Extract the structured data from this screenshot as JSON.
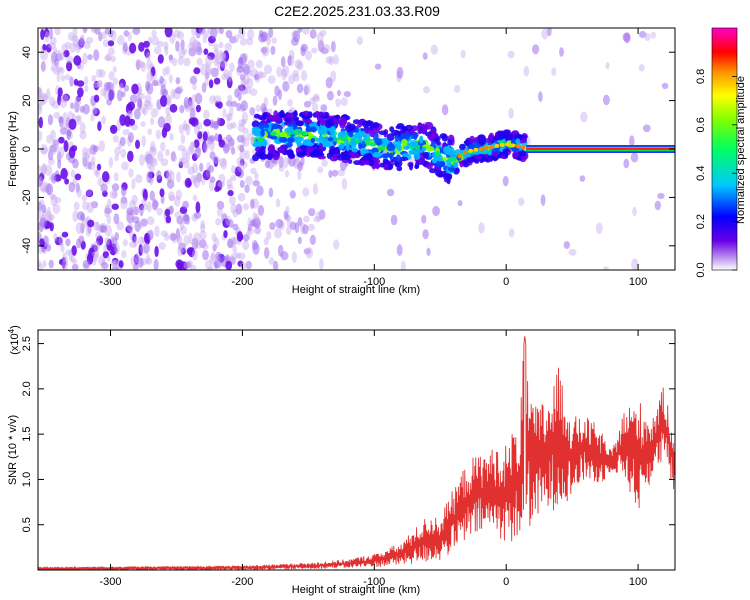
{
  "figure_title": "C2E2.2025.231.03.33.R09",
  "chart_data": [
    {
      "type": "heatmap",
      "xlabel": "Height of straight line (km)",
      "ylabel": "Frequency (Hz)",
      "xlim": [
        -355,
        128
      ],
      "ylim": [
        -50,
        50
      ],
      "x_ticks": [
        -300,
        -200,
        -100,
        0,
        100
      ],
      "x_tick_labels": [
        "-300",
        "-200",
        "-100",
        "0",
        "100"
      ],
      "y_ticks": [
        -40,
        -20,
        0,
        20,
        40
      ],
      "y_tick_labels": [
        "-40",
        "-20",
        "0",
        "20",
        "40"
      ],
      "colorbar": {
        "label": "Normalized spectral amplitude",
        "range": [
          0,
          1
        ],
        "ticks": [
          0.0,
          0.2,
          0.4,
          0.6,
          0.8
        ],
        "tick_labels": [
          "0.0",
          "0.2",
          "0.4",
          "0.6",
          "0.8"
        ],
        "colormap": [
          "#ffffff",
          "#5b00e0",
          "#0000ff",
          "#00c8ff",
          "#00ff00",
          "#ffff00",
          "#ff8000",
          "#ff0000",
          "#ff00ff"
        ]
      },
      "ridge": {
        "x": [
          -190,
          -170,
          -150,
          -130,
          -110,
          -90,
          -75,
          -60,
          -50,
          -40,
          -30,
          -20,
          -10,
          0,
          10,
          20,
          60,
          100,
          128
        ],
        "y": [
          5,
          6,
          6,
          5,
          3,
          0,
          1,
          2,
          -3,
          -5,
          -1,
          0,
          1,
          2,
          1,
          0,
          0,
          0,
          0
        ]
      },
      "grid": false
    },
    {
      "type": "line",
      "xlabel": "Height of straight line (km)",
      "ylabel": "SNR (10 * v/v)",
      "y_multiplier": "(x10",
      "y_multiplier_exp": "4",
      "y_multiplier_close": ")",
      "xlim": [
        -355,
        128
      ],
      "ylim": [
        0,
        2.65
      ],
      "x_ticks": [
        -300,
        -200,
        -100,
        0,
        100
      ],
      "x_tick_labels": [
        "-300",
        "-200",
        "-100",
        "0",
        "100"
      ],
      "y_ticks": [
        0.5,
        1.0,
        1.5,
        2.0,
        2.5
      ],
      "y_tick_labels": [
        "0.5",
        "1.0",
        "1.5",
        "2.0",
        "2.5"
      ],
      "color": "#e03030",
      "envelope": {
        "x": [
          -355,
          -200,
          -150,
          -120,
          -100,
          -80,
          -60,
          -50,
          -40,
          -30,
          -20,
          -10,
          0,
          10,
          14,
          20,
          30,
          40,
          50,
          60,
          70,
          80,
          90,
          100,
          110,
          120,
          128
        ],
        "upper": [
          0.03,
          0.05,
          0.08,
          0.12,
          0.18,
          0.3,
          0.6,
          0.6,
          0.9,
          1.2,
          1.3,
          1.35,
          1.4,
          1.7,
          2.6,
          1.8,
          1.9,
          2.25,
          1.7,
          1.7,
          1.6,
          1.3,
          1.8,
          1.9,
          1.7,
          2.05,
          1.5
        ],
        "lower": [
          0.0,
          0.0,
          0.01,
          0.02,
          0.03,
          0.05,
          0.08,
          0.1,
          0.2,
          0.3,
          0.4,
          0.4,
          0.3,
          0.3,
          0.4,
          0.5,
          0.6,
          0.7,
          0.8,
          1.0,
          0.9,
          1.1,
          1.0,
          0.6,
          1.0,
          1.2,
          0.8
        ]
      },
      "grid": false
    }
  ]
}
